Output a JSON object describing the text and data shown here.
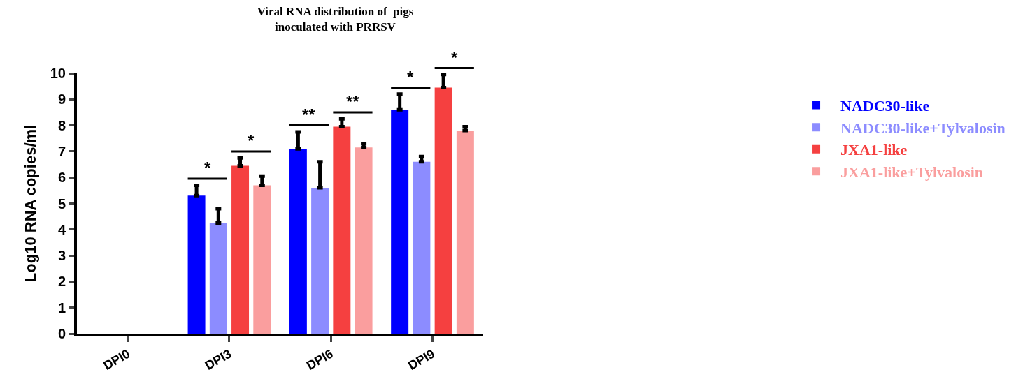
{
  "chart_data": {
    "type": "bar",
    "title": "Viral RNA distribution of  pigs\ninoculated with PRRSV",
    "ylabel": "Log10 RNA copies/ml",
    "categories": [
      "DPI0",
      "DPI3",
      "DPI6",
      "DPI9"
    ],
    "series": [
      {
        "name": "NADC30-like",
        "color": "#0000ff",
        "values": [
          null,
          5.3,
          7.1,
          8.6
        ],
        "errors": [
          null,
          [
            5.3,
            5.7
          ],
          [
            7.1,
            7.75
          ],
          [
            8.6,
            9.2
          ]
        ]
      },
      {
        "name": "NADC30-like+Tylvalosin",
        "color": "#8c8cff",
        "values": [
          null,
          4.25,
          5.6,
          6.6
        ],
        "errors": [
          null,
          [
            4.25,
            4.8
          ],
          [
            5.6,
            6.6
          ],
          [
            6.6,
            6.8
          ]
        ]
      },
      {
        "name": "JXA1-like",
        "color": "#f54040",
        "values": [
          null,
          6.45,
          7.95,
          9.45
        ],
        "errors": [
          null,
          [
            6.45,
            6.75
          ],
          [
            7.95,
            8.25
          ],
          [
            9.45,
            9.95
          ]
        ]
      },
      {
        "name": "JXA1-like+Tylvalosin",
        "color": "#fa9e9e",
        "values": [
          null,
          5.7,
          7.15,
          7.8
        ],
        "errors": [
          null,
          [
            5.7,
            6.05
          ],
          [
            7.15,
            7.3
          ],
          [
            7.8,
            7.95
          ]
        ]
      }
    ],
    "annotations": [
      "*",
      "*",
      "**",
      "**",
      "*",
      "*"
    ],
    "ylim": [
      0,
      10
    ],
    "yticks": [
      0,
      1,
      2,
      3,
      4,
      5,
      6,
      7,
      8,
      9,
      10
    ],
    "legend": "right"
  }
}
